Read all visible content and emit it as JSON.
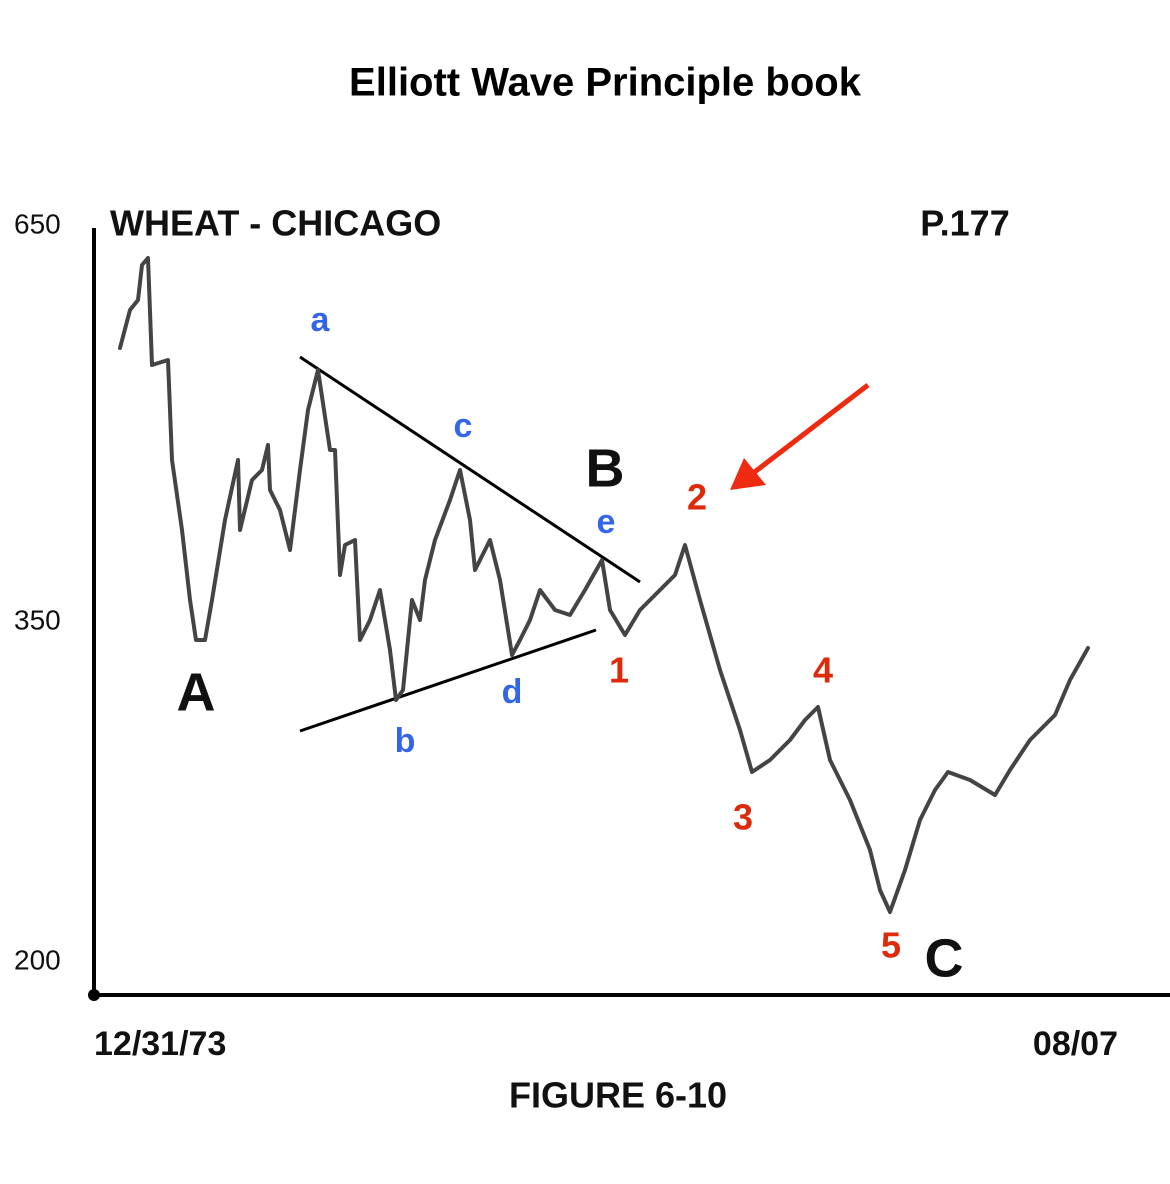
{
  "title": "Elliott Wave Principle book",
  "chart_label": "WHEAT - CHICAGO",
  "page": "P.177",
  "y_axis_labels": [
    650,
    350,
    200
  ],
  "x_axis_labels": [
    "12/31/73",
    "08/07"
  ],
  "caption": "FIGURE 6-10",
  "wave_labels": {
    "major": [
      "A",
      "B",
      "C"
    ],
    "triangle": [
      "a",
      "b",
      "c",
      "d",
      "e"
    ],
    "impulse": [
      "1",
      "2",
      "3",
      "4",
      "5"
    ]
  }
}
